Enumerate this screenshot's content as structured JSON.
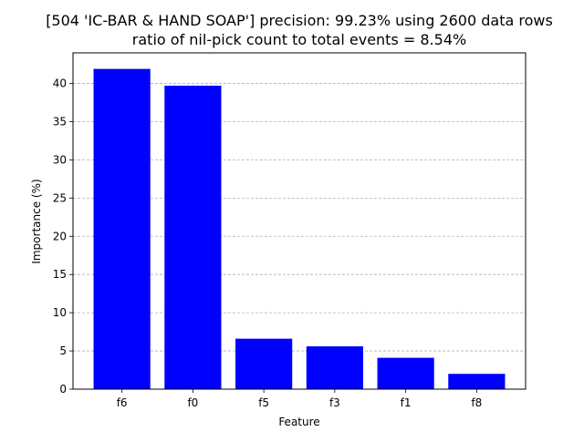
{
  "chart_data": {
    "type": "bar",
    "title": "[504 'IC-BAR & HAND SOAP'] precision: 99.23% using 2600 data rows",
    "subtitle": "ratio of nil-pick count to total events = 8.54%",
    "xlabel": "Feature",
    "ylabel": "Importance (%)",
    "categories": [
      "f6",
      "f0",
      "f5",
      "f3",
      "f1",
      "f8"
    ],
    "values": [
      41.9,
      39.7,
      6.6,
      5.6,
      4.1,
      2.0
    ],
    "ylim": [
      0,
      44
    ],
    "yticks": [
      0,
      5,
      10,
      15,
      20,
      25,
      30,
      35,
      40
    ],
    "grid": "y-dashed",
    "legend": "none"
  },
  "colors": {
    "bar": "#0000ff",
    "grid": "#b0b0b0",
    "axes": "#000000"
  }
}
